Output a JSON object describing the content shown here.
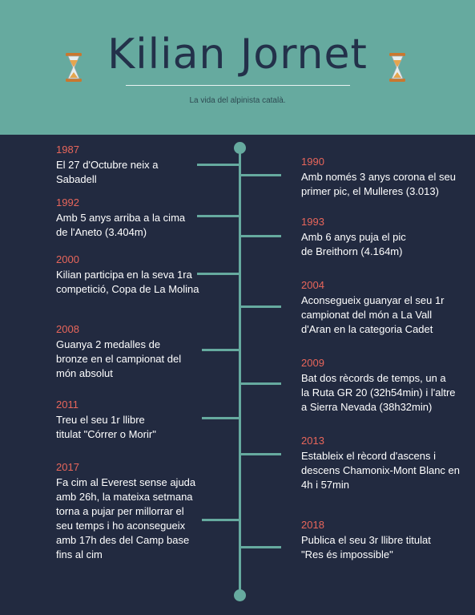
{
  "header": {
    "title": "Kilian Jornet",
    "subtitle": "La vida del alpinista català."
  },
  "icons": {
    "left": "hourglass-icon",
    "right": "hourglass-icon"
  },
  "colors": {
    "header_bg": "#66aa9f",
    "body_bg": "#222a40",
    "year": "#e8665b",
    "text": "#ffffff",
    "line": "#66aa9f"
  },
  "timeline": {
    "left": [
      {
        "year": "1987",
        "text": "El 27 d'Octubre neix a\nSabadell"
      },
      {
        "year": "1992",
        "text": "Amb 5 anys arriba a la cima\nde l'Aneto (3.404m)"
      },
      {
        "year": "2000",
        "text": "Kilian participa en la seva 1ra\ncompetició, Copa de La Molina"
      },
      {
        "year": "2008",
        "text": "Guanya 2 medalles de\nbronze en el campionat del\nmón absolut"
      },
      {
        "year": "2011",
        "text": "Treu el seu 1r llibre\ntitulat \"Córrer o Morir\""
      },
      {
        "year": "2017",
        "text": "Fa cim al Everest sense ajuda\namb 26h, la mateixa setmana\ntorna a pujar per millorrar el\nseu temps i ho aconsegueix\namb 17h des del Camp base\nfins al cim"
      }
    ],
    "right": [
      {
        "year": "1990",
        "text": "Amb només 3 anys corona el seu\nprimer pic, el Mulleres (3.013)"
      },
      {
        "year": "1993",
        "text": "Amb 6 anys puja el pic\nde Breithorn (4.164m)"
      },
      {
        "year": "2004",
        "text": "Aconsegueix guanyar el seu 1r\ncampionat del món a La Vall\nd'Aran en la categoria Cadet"
      },
      {
        "year": "2009",
        "text": "Bat dos rècords de temps, un a\nla Ruta GR 20 (32h54min) i l'altre\na Sierra Nevada (38h32min)"
      },
      {
        "year": "2013",
        "text": "Estableix el rècord d'ascens i\ndescens Chamonix-Mont Blanc en\n4h i 57min"
      },
      {
        "year": "2018",
        "text": "Publica el seu 3r llibre titulat\n\"Res és impossible\""
      }
    ]
  }
}
